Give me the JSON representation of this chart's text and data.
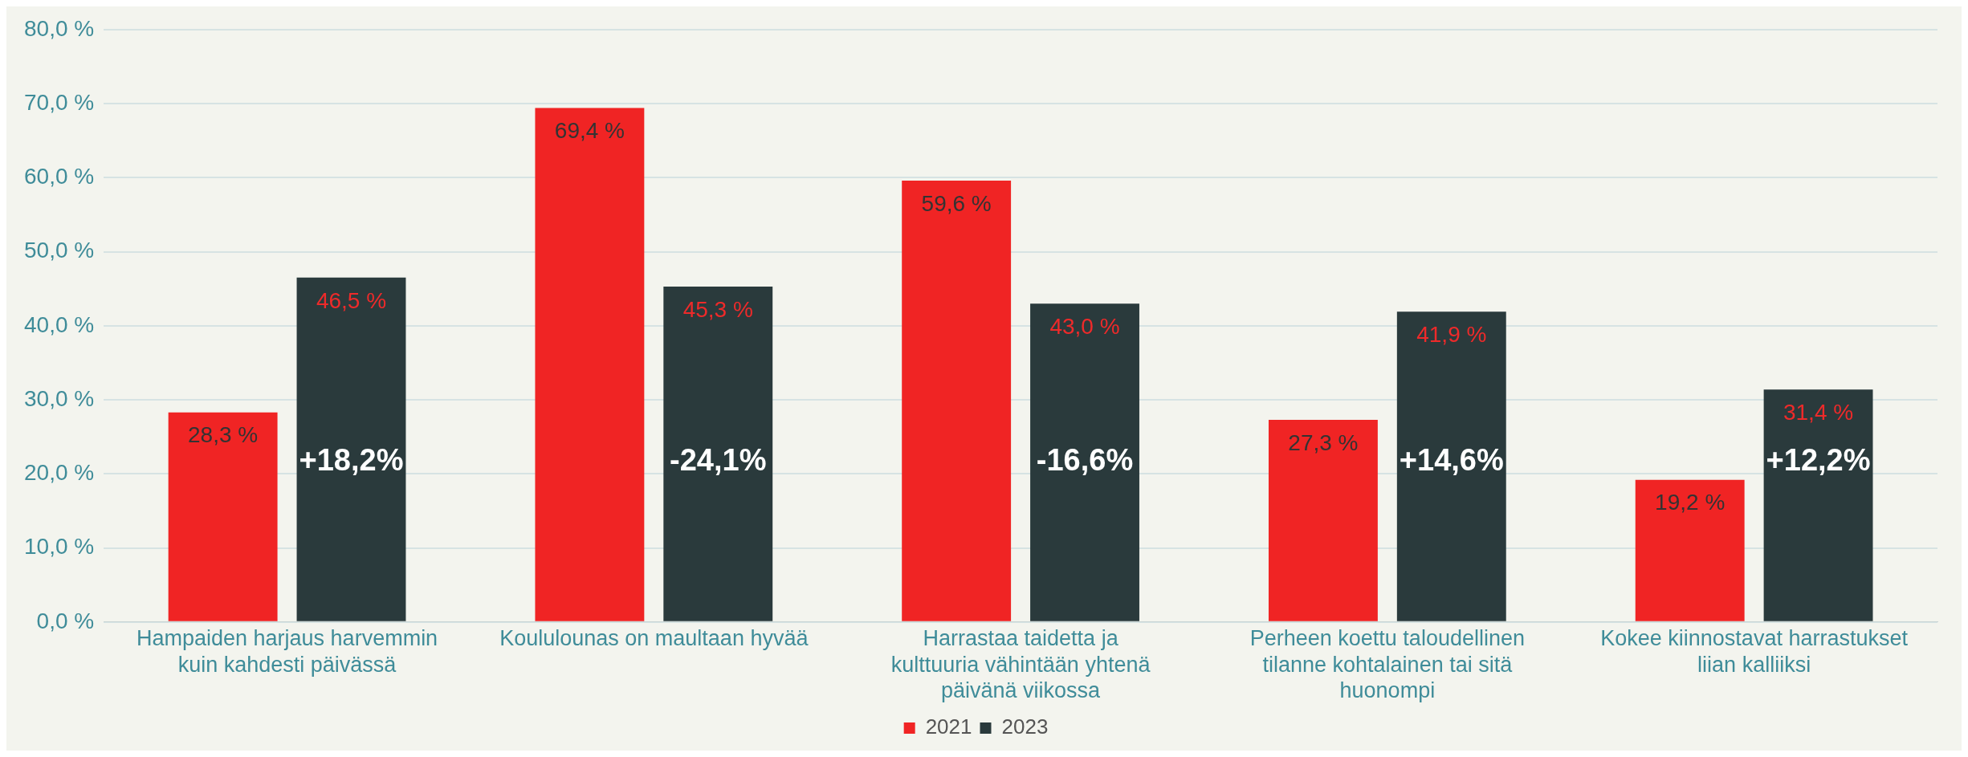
{
  "chart_data": {
    "type": "bar",
    "categories": [
      "Hampaiden harjaus harvemmin kuin kahdesti päivässä",
      "Koululounas on maultaan hyvää",
      "Harrastaa taidetta ja kulttuuria vähintään yhtenä päivänä viikossa",
      "Perheen koettu taloudellinen tilanne kohtalainen tai sitä huonompi",
      "Kokee kiinnostavat harrastukset liian kalliiksi"
    ],
    "series": [
      {
        "name": "2021",
        "color": "#f02424",
        "values": [
          28.3,
          69.4,
          59.6,
          27.3,
          19.2
        ],
        "value_labels": [
          "28,3 %",
          "69,4 %",
          "59,6 %",
          "27,3 %",
          "19,2 %"
        ]
      },
      {
        "name": "2023",
        "color": "#2a3a3c",
        "values": [
          46.5,
          45.3,
          43.0,
          41.9,
          31.4
        ],
        "value_labels": [
          "46,5 %",
          "45,3 %",
          "43,0 %",
          "41,9 %",
          "31,4 %"
        ]
      }
    ],
    "ylim": [
      0,
      80
    ],
    "yticks": [
      {
        "value": 0,
        "label": "0,0 %"
      },
      {
        "value": 10,
        "label": "10,0 %"
      },
      {
        "value": 20,
        "label": "20,0 %"
      },
      {
        "value": 30,
        "label": "30,0 %"
      },
      {
        "value": 40,
        "label": "40,0 %"
      },
      {
        "value": 50,
        "label": "50,0 %"
      },
      {
        "value": 60,
        "label": "60,0 %"
      },
      {
        "value": 70,
        "label": "70,0 %"
      },
      {
        "value": 80,
        "label": "80,0 %"
      }
    ],
    "grid": "y",
    "legend": "bottom",
    "annotations": [
      "+18,2%",
      "-24,1%",
      "-16,6%",
      "+14,6%",
      "+12,2%"
    ]
  }
}
